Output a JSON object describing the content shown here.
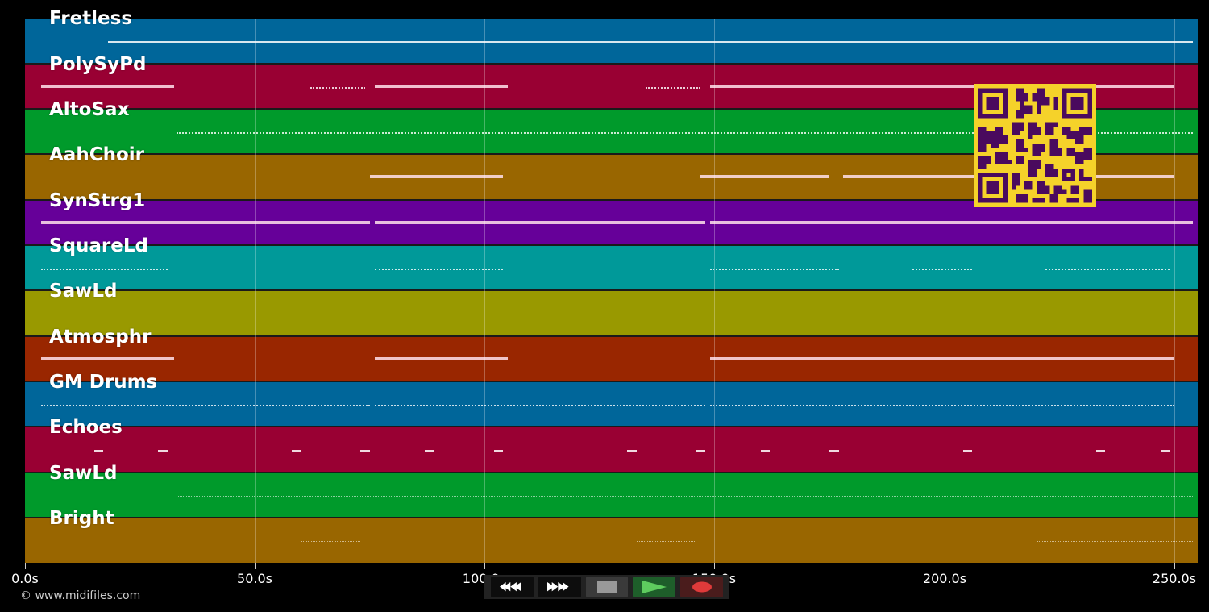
{
  "tracks": [
    {
      "name": "Fretless",
      "color": "#00669a"
    },
    {
      "name": "PolySyPd",
      "color": "#990033"
    },
    {
      "name": "AltoSax",
      "color": "#009a2b"
    },
    {
      "name": "AahChoir",
      "color": "#996600"
    },
    {
      "name": "SynStrg1",
      "color": "#660099"
    },
    {
      "name": "SquareLd",
      "color": "#009999"
    },
    {
      "name": "SawLd",
      "color": "#999900"
    },
    {
      "name": "Atmosphr",
      "color": "#992600"
    },
    {
      "name": "GM Drums",
      "color": "#00669a"
    },
    {
      "name": "Echoes",
      "color": "#990033"
    },
    {
      "name": "SawLd",
      "color": "#009a2b"
    },
    {
      "name": "Bright",
      "color": "#996600"
    }
  ],
  "time_axis": {
    "ticks": [
      "0.0s",
      "50.0s",
      "100.0s",
      "150.0s",
      "200.0s",
      "250.0s"
    ],
    "tick_seconds": [
      0,
      50,
      100,
      150,
      200,
      250
    ]
  },
  "copyright": "© www.midifiles.com",
  "transport": {
    "rewind": "rewind-icon",
    "fast_forward": "fast-forward-icon",
    "stop": "stop-icon",
    "play": "play-icon",
    "record": "record-icon"
  },
  "qr_code": {
    "fg": "#4a0a5e",
    "bg": "#f5d22a"
  },
  "notes": [
    {
      "track": 0,
      "segments": [
        [
          18,
          76,
          "thin"
        ],
        [
          76,
          150,
          "thin"
        ],
        [
          150,
          254,
          "thin"
        ]
      ]
    },
    {
      "track": 1,
      "segments": [
        [
          3.5,
          32.5,
          "thick"
        ],
        [
          62,
          74,
          "dotted"
        ],
        [
          76,
          105,
          "thick"
        ],
        [
          135,
          147,
          "dotted"
        ],
        [
          149,
          250,
          "thick"
        ]
      ]
    },
    {
      "track": 2,
      "segments": [
        [
          33,
          254,
          "dotted"
        ]
      ]
    },
    {
      "track": 3,
      "segments": [
        [
          75,
          104,
          "thick"
        ],
        [
          147,
          175,
          "thick"
        ],
        [
          178,
          250,
          "thick"
        ]
      ]
    },
    {
      "track": 4,
      "segments": [
        [
          3.5,
          75,
          "thick"
        ],
        [
          76,
          148,
          "thick"
        ],
        [
          149,
          254,
          "thick"
        ]
      ]
    },
    {
      "track": 5,
      "segments": [
        [
          3.5,
          31,
          "dotted"
        ],
        [
          76,
          104,
          "dotted"
        ],
        [
          149,
          177,
          "dotted"
        ],
        [
          193,
          206,
          "dotted"
        ],
        [
          222,
          249,
          "dotted"
        ]
      ]
    },
    {
      "track": 6,
      "segments": [
        [
          3.5,
          31,
          "faint"
        ],
        [
          33,
          75,
          "faint"
        ],
        [
          76,
          104,
          "faint"
        ],
        [
          106,
          148,
          "faint"
        ],
        [
          149,
          177,
          "faint"
        ],
        [
          193,
          206,
          "faint"
        ],
        [
          222,
          249,
          "faint"
        ]
      ]
    },
    {
      "track": 7,
      "segments": [
        [
          3.5,
          32.5,
          "thick"
        ],
        [
          76,
          105,
          "thick"
        ],
        [
          149,
          207,
          "thick"
        ],
        [
          207,
          221,
          "thick"
        ],
        [
          221,
          250,
          "thick"
        ]
      ]
    },
    {
      "track": 8,
      "segments": [
        [
          3.5,
          75,
          "dotted"
        ],
        [
          76,
          148,
          "dotted"
        ],
        [
          149,
          250,
          "dotted"
        ]
      ]
    },
    {
      "track": 9,
      "segments": [
        [
          15,
          17,
          "thin"
        ],
        [
          29,
          31,
          "thin"
        ],
        [
          58,
          60,
          "thin"
        ],
        [
          73,
          75,
          "thin"
        ],
        [
          87,
          89,
          "thin"
        ],
        [
          102,
          104,
          "thin"
        ],
        [
          131,
          133,
          "thin"
        ],
        [
          146,
          148,
          "thin"
        ],
        [
          160,
          162,
          "thin"
        ],
        [
          175,
          177,
          "thin"
        ],
        [
          204,
          206,
          "thin"
        ],
        [
          233,
          235,
          "thin"
        ],
        [
          247,
          249,
          "thin"
        ]
      ]
    },
    {
      "track": 10,
      "segments": [
        [
          33,
          254,
          "faint"
        ]
      ]
    },
    {
      "track": 11,
      "segments": [
        [
          60,
          73,
          "faint"
        ],
        [
          133,
          146,
          "faint"
        ],
        [
          220,
          254,
          "faint"
        ]
      ]
    }
  ]
}
